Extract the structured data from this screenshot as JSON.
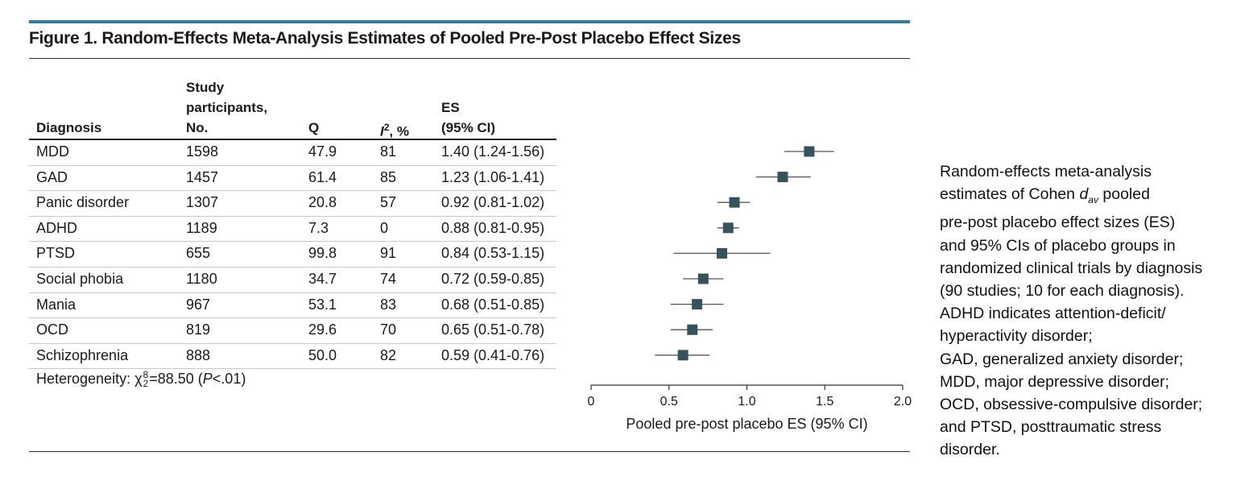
{
  "figure": {
    "title": "Figure 1. Random-Effects Meta-Analysis Estimates of Pooled Pre-Post Placebo Effect Sizes"
  },
  "table": {
    "headers": {
      "diagnosis": "Diagnosis",
      "participants": [
        "Study",
        "participants,",
        "No."
      ],
      "q": "Q",
      "i2_base": "I",
      "i2_sup": "2",
      "i2_suffix": ", %",
      "es": [
        "ES",
        "(95% CI)"
      ]
    },
    "rows": [
      {
        "diagnosis": "MDD",
        "participants": "1598",
        "q": "47.9",
        "i2": "81",
        "es": "1.40 (1.24-1.56)"
      },
      {
        "diagnosis": "GAD",
        "participants": "1457",
        "q": "61.4",
        "i2": "85",
        "es": "1.23 (1.06-1.41)"
      },
      {
        "diagnosis": "Panic disorder",
        "participants": "1307",
        "q": "20.8",
        "i2": "57",
        "es": "0.92 (0.81-1.02)"
      },
      {
        "diagnosis": "ADHD",
        "participants": "1189",
        "q": "7.3",
        "i2": "0",
        "es": "0.88 (0.81-0.95)"
      },
      {
        "diagnosis": "PTSD",
        "participants": "655",
        "q": "99.8",
        "i2": "91",
        "es": "0.84 (0.53-1.15)"
      },
      {
        "diagnosis": "Social phobia",
        "participants": "1180",
        "q": "34.7",
        "i2": "74",
        "es": "0.72 (0.59-0.85)"
      },
      {
        "diagnosis": "Mania",
        "participants": "967",
        "q": "53.1",
        "i2": "83",
        "es": "0.68 (0.51-0.85)"
      },
      {
        "diagnosis": "OCD",
        "participants": "819",
        "q": "29.6",
        "i2": "70",
        "es": "0.65 (0.51-0.78)"
      },
      {
        "diagnosis": "Schizophrenia",
        "participants": "888",
        "q": "50.0",
        "i2": "82",
        "es": "0.59 (0.41-0.76)"
      }
    ],
    "footnote": {
      "prefix": "Heterogeneity: χ",
      "sup": "8",
      "sub": "2",
      "middle": "=88.50 (",
      "p": "P",
      "suffix": "<.01)"
    }
  },
  "chart_data": {
    "type": "forest",
    "categories": [
      "MDD",
      "GAD",
      "Panic disorder",
      "ADHD",
      "PTSD",
      "Social phobia",
      "Mania",
      "OCD",
      "Schizophrenia"
    ],
    "estimates": [
      1.4,
      1.23,
      0.92,
      0.88,
      0.84,
      0.72,
      0.68,
      0.65,
      0.59
    ],
    "ci_lower": [
      1.24,
      1.06,
      0.81,
      0.81,
      0.53,
      0.59,
      0.51,
      0.51,
      0.41
    ],
    "ci_upper": [
      1.56,
      1.41,
      1.02,
      0.95,
      1.15,
      0.85,
      0.85,
      0.78,
      0.76
    ],
    "xlim": [
      0,
      2.0
    ],
    "xticks": [
      "0",
      "0.5",
      "1.0",
      "1.5",
      "2.0"
    ],
    "xlabel": "Pooled pre-post placebo ES (95% CI)",
    "grid": false,
    "marker_color": "#36525c",
    "ci_color": "#555555"
  },
  "caption": {
    "lines": [
      "Random-effects meta-analysis",
      "estimates of Cohen ",
      "pre-post placebo effect sizes (ES)",
      "and 95% CIs of placebo groups in",
      "randomized clinical trials by diagnosis",
      "(90 studies; 10 for each diagnosis).",
      "ADHD indicates attention-deficit/",
      "hyperactivity disorder;",
      "GAD, generalized anxiety disorder;",
      "MDD, major depressive disorder;",
      "OCD, obsessive-compulsive disorder;",
      "and PTSD, posttraumatic stress",
      "disorder."
    ],
    "d_symbol": "d",
    "d_sub": "av",
    "d_after": " pooled"
  }
}
